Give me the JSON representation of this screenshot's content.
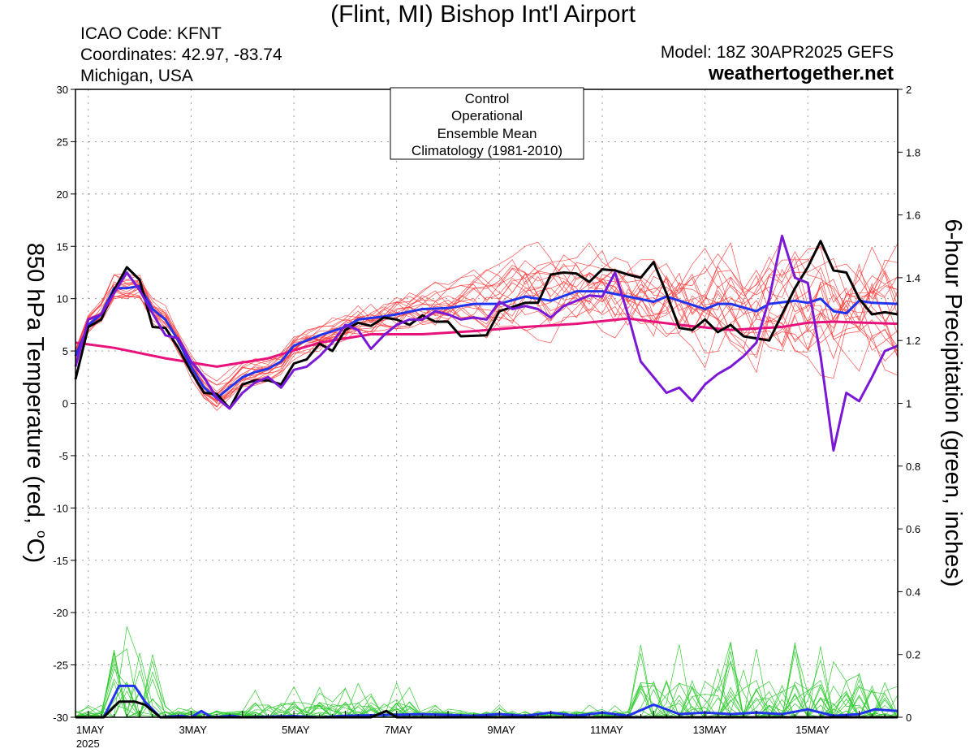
{
  "header": {
    "title": "(Flint, MI) Bishop Int'l Airport",
    "icao": "ICAO Code: KFNT",
    "coords": "Coordinates: 42.97, -83.74",
    "region": "Michigan, USA",
    "model": "Model: 18Z 30APR2025 GEFS",
    "site": "weathertogether.net"
  },
  "colors": {
    "control": "#000000",
    "operational": "#7a18d6",
    "ensemble_mean": "#2233ee",
    "climatology": "#e8127c",
    "members_temp": "#ff3b3b",
    "members_precip": "#33cc33",
    "site": "#1aa0ef"
  },
  "legend": {
    "control": "Control",
    "operational": "Operational",
    "ensemble_mean": "Ensemble Mean",
    "climatology": "Climatology (1981-2010)"
  },
  "chart_data": {
    "type": "line",
    "ylabel": "850 hPa Temperature (red, °C)",
    "ylabel_parts": {
      "before": "850 hPa Temperature (red, ",
      "degree": "o",
      "after": "C)"
    },
    "y2label": "6-hour Precipitation (green, inches)",
    "ylim": [
      -30,
      30
    ],
    "y2lim": [
      0,
      2
    ],
    "yticks": [
      "30",
      "25",
      "20",
      "15",
      "10",
      "5",
      "0",
      "-5",
      "-10",
      "-15",
      "-20",
      "-25",
      "-30"
    ],
    "y2ticks": [
      "2",
      "1.8",
      "1.6",
      "1.4",
      "1.2",
      "1",
      "0.8",
      "0.6",
      "0.4",
      "0.2",
      "0"
    ],
    "xlim_days": [
      0.75,
      16.75
    ],
    "xticks": [
      {
        "day": 1,
        "label": "1MAY",
        "sub": "2025"
      },
      {
        "day": 3,
        "label": "3MAY"
      },
      {
        "day": 5,
        "label": "5MAY"
      },
      {
        "day": 7,
        "label": "7MAY"
      },
      {
        "day": 9,
        "label": "9MAY"
      },
      {
        "day": 11,
        "label": "11MAY"
      },
      {
        "day": 13,
        "label": "13MAY"
      },
      {
        "day": 15,
        "label": "15MAY"
      }
    ],
    "grid": "dotted",
    "legend_position": "top-center",
    "series": [
      {
        "name": "Climatology (1981-2010)",
        "key": "climatology",
        "axis": "left",
        "points": [
          [
            0.75,
            5.8
          ],
          [
            1.5,
            5.3
          ],
          [
            2.5,
            4.3
          ],
          [
            3.5,
            3.5
          ],
          [
            4.5,
            4.3
          ],
          [
            5.5,
            5.8
          ],
          [
            6.5,
            6.6
          ],
          [
            7.5,
            6.6
          ],
          [
            8.5,
            6.9
          ],
          [
            9.5,
            7.3
          ],
          [
            10.5,
            7.6
          ],
          [
            11.5,
            8.1
          ],
          [
            12.5,
            7.5
          ],
          [
            13.5,
            7.0
          ],
          [
            14.5,
            7.3
          ],
          [
            15.0,
            7.7
          ],
          [
            15.5,
            7.8
          ],
          [
            16.75,
            7.6
          ]
        ]
      },
      {
        "name": "Ensemble Mean",
        "key": "ensemble_mean",
        "axis": "left",
        "points": [
          [
            0.75,
            4.5
          ],
          [
            1.0,
            7.5
          ],
          [
            1.25,
            8.5
          ],
          [
            1.5,
            11.0
          ],
          [
            1.75,
            11.0
          ],
          [
            2.0,
            11.2
          ],
          [
            2.25,
            9.0
          ],
          [
            2.5,
            8.0
          ],
          [
            2.75,
            6.0
          ],
          [
            3.0,
            3.5
          ],
          [
            3.25,
            1.5
          ],
          [
            3.5,
            0.5
          ],
          [
            3.75,
            1.5
          ],
          [
            4.0,
            2.5
          ],
          [
            4.25,
            3.0
          ],
          [
            4.5,
            3.3
          ],
          [
            4.75,
            4.0
          ],
          [
            5.0,
            5.5
          ],
          [
            5.5,
            6.5
          ],
          [
            6.0,
            7.3
          ],
          [
            6.25,
            8.0
          ],
          [
            6.75,
            8.3
          ],
          [
            7.0,
            8.5
          ],
          [
            7.5,
            9.0
          ],
          [
            8.0,
            9.1
          ],
          [
            8.5,
            9.5
          ],
          [
            9.0,
            9.5
          ],
          [
            9.5,
            10.2
          ],
          [
            10.0,
            9.8
          ],
          [
            10.5,
            10.7
          ],
          [
            11.0,
            10.7
          ],
          [
            11.5,
            10.2
          ],
          [
            12.0,
            9.7
          ],
          [
            12.25,
            10.2
          ],
          [
            12.5,
            9.8
          ],
          [
            13.0,
            9.0
          ],
          [
            13.25,
            9.5
          ],
          [
            13.5,
            9.5
          ],
          [
            14.0,
            8.8
          ],
          [
            14.25,
            9.5
          ],
          [
            14.75,
            9.8
          ],
          [
            15.0,
            9.6
          ],
          [
            15.25,
            10.0
          ],
          [
            15.5,
            8.8
          ],
          [
            15.75,
            8.6
          ],
          [
            16.0,
            9.8
          ],
          [
            16.25,
            9.6
          ],
          [
            16.75,
            9.5
          ]
        ]
      },
      {
        "name": "Control",
        "key": "control",
        "axis": "left",
        "points": [
          [
            0.75,
            2.3
          ],
          [
            1.0,
            7.3
          ],
          [
            1.25,
            8.0
          ],
          [
            1.5,
            10.8
          ],
          [
            1.75,
            13.0
          ],
          [
            2.0,
            11.8
          ],
          [
            2.25,
            7.3
          ],
          [
            2.5,
            7.2
          ],
          [
            2.75,
            5.3
          ],
          [
            3.0,
            3.0
          ],
          [
            3.25,
            1.0
          ],
          [
            3.5,
            0.9
          ],
          [
            3.75,
            -0.5
          ],
          [
            4.0,
            1.8
          ],
          [
            4.25,
            2.2
          ],
          [
            4.5,
            2.2
          ],
          [
            4.75,
            1.8
          ],
          [
            5.0,
            3.8
          ],
          [
            5.25,
            4.2
          ],
          [
            5.5,
            5.7
          ],
          [
            5.75,
            5.0
          ],
          [
            6.0,
            7.0
          ],
          [
            6.25,
            7.7
          ],
          [
            6.5,
            7.4
          ],
          [
            6.75,
            8.2
          ],
          [
            7.0,
            8.0
          ],
          [
            7.25,
            7.5
          ],
          [
            7.5,
            8.4
          ],
          [
            7.75,
            7.8
          ],
          [
            8.0,
            7.8
          ],
          [
            8.25,
            6.4
          ],
          [
            8.75,
            6.5
          ],
          [
            9.0,
            8.8
          ],
          [
            9.25,
            9.2
          ],
          [
            9.5,
            9.6
          ],
          [
            9.75,
            9.6
          ],
          [
            10.0,
            12.3
          ],
          [
            10.25,
            12.5
          ],
          [
            10.5,
            12.4
          ],
          [
            10.75,
            11.6
          ],
          [
            11.0,
            12.8
          ],
          [
            11.25,
            12.7
          ],
          [
            11.5,
            12.3
          ],
          [
            11.75,
            12.0
          ],
          [
            12.0,
            13.5
          ],
          [
            12.25,
            10.5
          ],
          [
            12.5,
            7.2
          ],
          [
            12.75,
            7.0
          ],
          [
            13.0,
            8.0
          ],
          [
            13.25,
            6.8
          ],
          [
            13.5,
            7.5
          ],
          [
            13.75,
            6.4
          ],
          [
            14.0,
            6.2
          ],
          [
            14.25,
            6.0
          ],
          [
            14.5,
            8.5
          ],
          [
            14.75,
            11.0
          ],
          [
            15.0,
            13.0
          ],
          [
            15.25,
            15.5
          ],
          [
            15.5,
            12.7
          ],
          [
            15.75,
            12.5
          ],
          [
            16.0,
            10.0
          ],
          [
            16.25,
            8.5
          ],
          [
            16.5,
            8.7
          ],
          [
            16.75,
            8.5
          ]
        ]
      },
      {
        "name": "Operational",
        "key": "operational",
        "axis": "left",
        "points": [
          [
            0.75,
            3.5
          ],
          [
            1.0,
            8.0
          ],
          [
            1.25,
            8.5
          ],
          [
            1.5,
            10.5
          ],
          [
            1.75,
            12.5
          ],
          [
            2.0,
            10.8
          ],
          [
            2.25,
            8.6
          ],
          [
            2.5,
            6.5
          ],
          [
            2.75,
            6.2
          ],
          [
            3.0,
            4.0
          ],
          [
            3.25,
            2.5
          ],
          [
            3.5,
            0.5
          ],
          [
            3.75,
            -0.5
          ],
          [
            4.0,
            1.0
          ],
          [
            4.25,
            2.0
          ],
          [
            4.5,
            2.5
          ],
          [
            4.75,
            1.5
          ],
          [
            5.0,
            3.2
          ],
          [
            5.25,
            3.5
          ],
          [
            5.5,
            4.5
          ],
          [
            5.75,
            5.8
          ],
          [
            6.0,
            7.5
          ],
          [
            6.25,
            7.0
          ],
          [
            6.5,
            5.2
          ],
          [
            6.75,
            6.5
          ],
          [
            7.0,
            7.5
          ],
          [
            7.25,
            8.0
          ],
          [
            7.5,
            8.0
          ],
          [
            7.75,
            8.8
          ],
          [
            8.0,
            8.5
          ],
          [
            8.25,
            8.0
          ],
          [
            8.5,
            8.2
          ],
          [
            8.75,
            8.0
          ],
          [
            9.0,
            9.7
          ],
          [
            9.25,
            9.0
          ],
          [
            9.5,
            9.3
          ],
          [
            9.75,
            9.0
          ],
          [
            10.0,
            8.2
          ],
          [
            10.25,
            9.3
          ],
          [
            10.5,
            9.8
          ],
          [
            10.75,
            10.3
          ],
          [
            11.0,
            10.2
          ],
          [
            11.25,
            12.5
          ],
          [
            11.5,
            8.5
          ],
          [
            11.75,
            4.0
          ],
          [
            12.0,
            2.5
          ],
          [
            12.25,
            1.0
          ],
          [
            12.5,
            1.5
          ],
          [
            12.75,
            0.2
          ],
          [
            13.0,
            1.8
          ],
          [
            13.25,
            2.8
          ],
          [
            13.5,
            3.5
          ],
          [
            13.75,
            4.5
          ],
          [
            14.0,
            5.8
          ],
          [
            14.25,
            10.0
          ],
          [
            14.5,
            16.0
          ],
          [
            14.75,
            12.0
          ],
          [
            15.0,
            11.5
          ],
          [
            15.25,
            4.5
          ],
          [
            15.5,
            -4.5
          ],
          [
            15.75,
            1.0
          ],
          [
            16.0,
            0.2
          ],
          [
            16.25,
            2.5
          ],
          [
            16.5,
            5.0
          ],
          [
            16.75,
            5.5
          ]
        ]
      },
      {
        "name": "Ensemble Mean",
        "key": "ensemble_mean",
        "axis": "right",
        "points": [
          [
            0.75,
            0
          ],
          [
            1.3,
            0
          ],
          [
            1.6,
            0.1
          ],
          [
            1.9,
            0.1
          ],
          [
            2.1,
            0.05
          ],
          [
            2.4,
            0
          ],
          [
            2.8,
            0.005
          ],
          [
            3.0,
            0
          ],
          [
            3.2,
            0.02
          ],
          [
            3.4,
            0
          ],
          [
            3.8,
            0.005
          ],
          [
            4.0,
            0
          ],
          [
            5.0,
            0.004
          ],
          [
            5.5,
            0
          ],
          [
            6.0,
            0.005
          ],
          [
            7.0,
            0.008
          ],
          [
            7.5,
            0.01
          ],
          [
            8.5,
            0.005
          ],
          [
            9.0,
            0.01
          ],
          [
            9.5,
            0.005
          ],
          [
            10.0,
            0.015
          ],
          [
            10.5,
            0.005
          ],
          [
            11.0,
            0.015
          ],
          [
            11.5,
            0.005
          ],
          [
            12.0,
            0.04
          ],
          [
            12.5,
            0.01
          ],
          [
            13.0,
            0.015
          ],
          [
            13.5,
            0.01
          ],
          [
            14.0,
            0.015
          ],
          [
            14.5,
            0.01
          ],
          [
            15.0,
            0.025
          ],
          [
            15.5,
            0.005
          ],
          [
            16.0,
            0.01
          ],
          [
            16.3,
            0.025
          ],
          [
            16.75,
            0.02
          ]
        ]
      },
      {
        "name": "Control",
        "key": "control",
        "axis": "right",
        "points": [
          [
            0.75,
            0
          ],
          [
            1.3,
            0
          ],
          [
            1.6,
            0.05
          ],
          [
            1.9,
            0.05
          ],
          [
            2.1,
            0.04
          ],
          [
            2.4,
            0
          ],
          [
            6.5,
            0
          ],
          [
            6.8,
            0.02
          ],
          [
            7.0,
            0
          ],
          [
            16.75,
            0
          ]
        ]
      }
    ]
  }
}
